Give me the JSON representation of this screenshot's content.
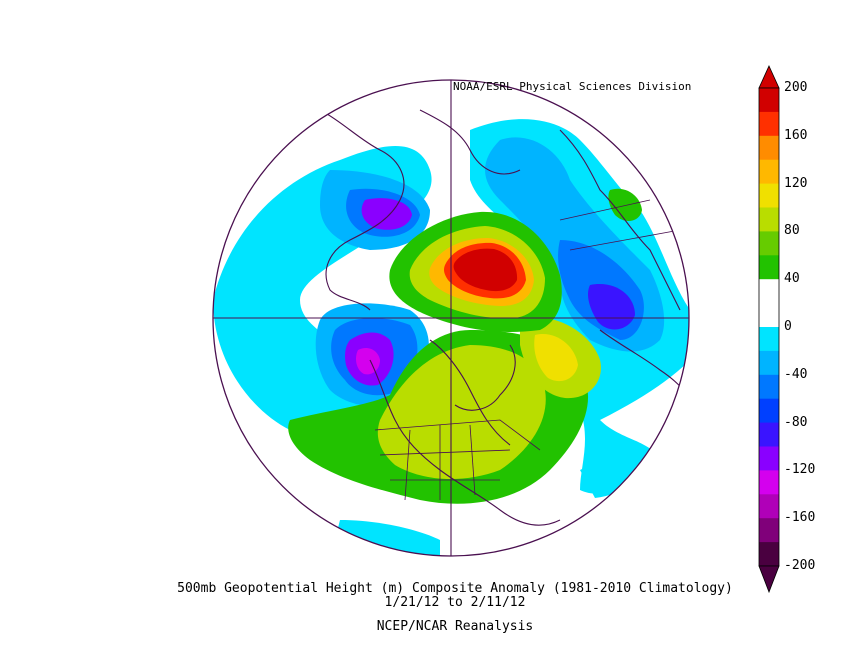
{
  "credit": "NOAA/ESRL Physical Sciences Division",
  "caption": {
    "line1": "500mb Geopotential Height (m) Composite Anomaly (1981-2010 Climatology)",
    "line2": "1/21/12  to 2/11/12",
    "line3": "NCEP/NCAR Reanalysis"
  },
  "colorbar": {
    "labels": [
      "200",
      "160",
      "120",
      "80",
      "40",
      "0",
      "-40",
      "-80",
      "-120",
      "-160",
      "-200"
    ],
    "colors": [
      "#d10000",
      "#ff3000",
      "#ff8c00",
      "#ffb800",
      "#f0e000",
      "#b9dd00",
      "#66cc00",
      "#22c200",
      "#ffffff",
      "#ffffff",
      "#00e4ff",
      "#00b4ff",
      "#0078ff",
      "#0040ff",
      "#3a14ff",
      "#8a00ff",
      "#d400ee",
      "#b000b8",
      "#80007a",
      "#4a0040"
    ]
  },
  "map": {
    "projection": "north polar stereographic",
    "colors": {
      "cyan": "#00e4ff",
      "lightblue": "#00b4ff",
      "blue": "#0078ff",
      "deepblue": "#0040ff",
      "indigo": "#3a14ff",
      "violet": "#8a00ff",
      "magenta": "#d400ee",
      "purple": "#b000b8",
      "green": "#22c200",
      "lightgreen": "#66cc00",
      "yellowgreen": "#b9dd00",
      "yellow": "#f0e000",
      "orange": "#ffb800",
      "darkorange": "#ff8c00",
      "redorange": "#ff3000",
      "red": "#d10000",
      "outline": "#4a1050"
    }
  }
}
